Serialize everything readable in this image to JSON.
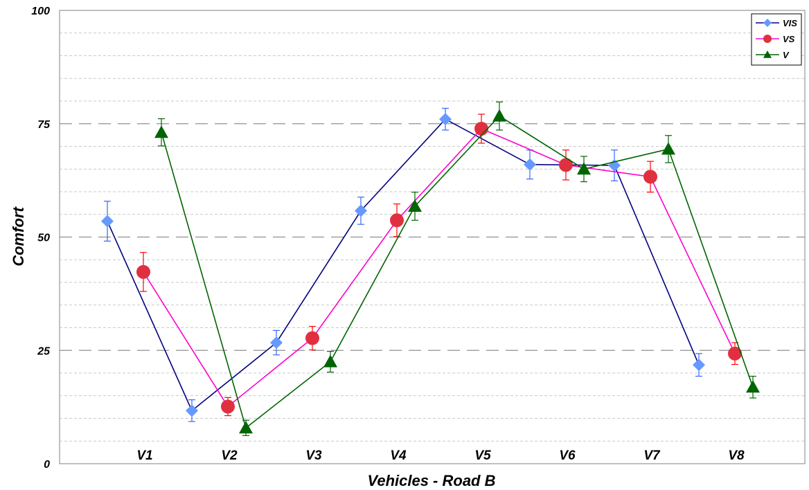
{
  "chart_data": {
    "type": "line",
    "title": "",
    "xlabel": "Vehicles - Road B",
    "ylabel": "Comfort",
    "categories": [
      "V1",
      "V2",
      "V3",
      "V4",
      "V5",
      "V6",
      "V7",
      "V8"
    ],
    "ylim": [
      0,
      100
    ],
    "yticks": [
      "0",
      "25",
      "50",
      "75",
      "100"
    ],
    "grid": "dashed horizontal",
    "legend": "top-right",
    "series": [
      {
        "name": "VIS",
        "marker": "diamond",
        "line_color": "#000080",
        "marker_color": "#6699FF",
        "error_color": "#3366FF",
        "values": [
          53.5,
          11.7,
          26.7,
          55.8,
          76.0,
          66.0,
          65.8,
          21.8
        ],
        "errors": [
          4.4,
          2.4,
          2.7,
          3.0,
          2.4,
          3.2,
          3.4,
          2.5
        ]
      },
      {
        "name": "VS",
        "marker": "circle",
        "line_color": "#FF00CC",
        "marker_color": "#E03040",
        "error_color": "#FF0000",
        "values": [
          42.3,
          12.6,
          27.7,
          53.7,
          73.9,
          65.9,
          63.3,
          24.3
        ],
        "errors": [
          4.3,
          2.0,
          2.6,
          3.6,
          3.2,
          3.3,
          3.4,
          2.4
        ]
      },
      {
        "name": "V",
        "marker": "triangle",
        "line_color": "#006400",
        "marker_color": "#006400",
        "error_color": "#006400",
        "values": [
          73.1,
          7.9,
          22.5,
          56.8,
          76.7,
          65.0,
          69.4,
          16.9
        ],
        "errors": [
          3.0,
          1.7,
          2.3,
          3.1,
          3.1,
          2.8,
          3.0,
          2.4
        ]
      }
    ]
  }
}
